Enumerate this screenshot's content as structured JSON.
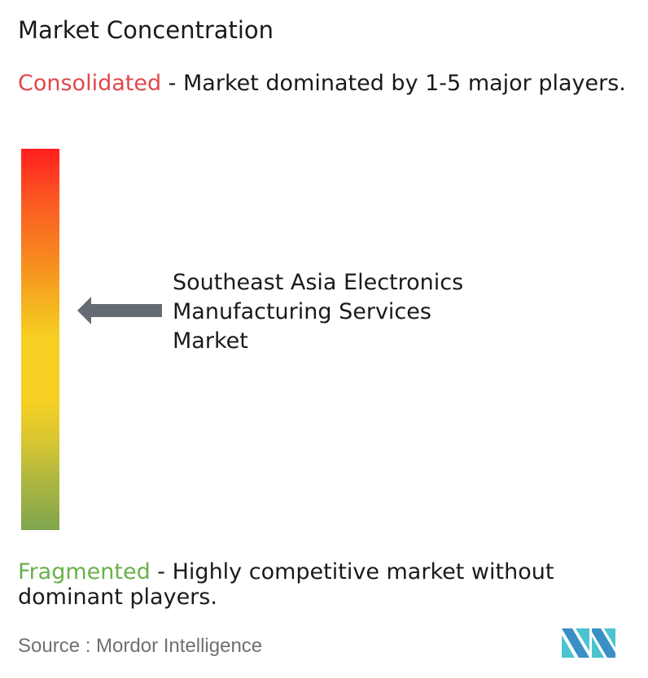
{
  "title": "Market Concentration",
  "consolidated": {
    "label": "Consolidated",
    "text": " - Market dominated by 1-5 major players.",
    "color": "#e0474c"
  },
  "fragmented": {
    "label": "Fragmented",
    "text": " - Highly competitive market without dominant players.",
    "color": "#6ab04c"
  },
  "market_label": [
    "Southeast Asia Electronics",
    "Manufacturing Services",
    "Market"
  ],
  "source": "Source :  Mordor Intelligence",
  "logo_text": "Mordor Intelligence",
  "colors": {
    "scale_top": "#ff1e1e",
    "scale_middle": "#f6d023",
    "scale_bottom": "#7ea54e",
    "arrow": "#646b73",
    "logo_teal": "#4cc3d0",
    "logo_blue": "#3a8fc7"
  }
}
